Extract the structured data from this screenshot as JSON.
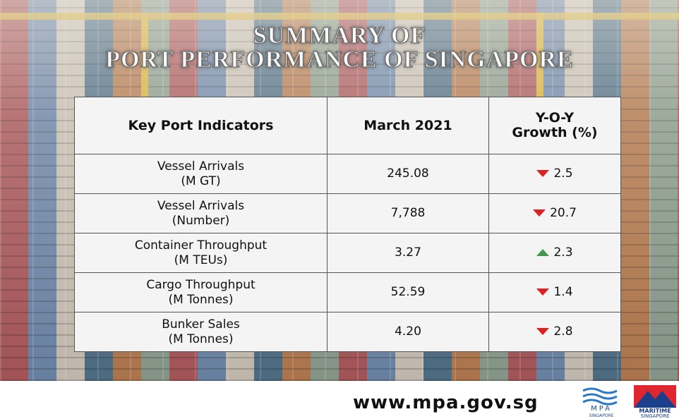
{
  "header": {
    "title_lines": [
      "SUMMARY OF",
      "PORT PERFORMANCE OF SINGAPORE"
    ]
  },
  "table": {
    "columns": [
      [
        "Key Port Indicators"
      ],
      [
        "March 2021"
      ],
      [
        "Y-O-Y",
        "Growth (%)"
      ]
    ],
    "rows": [
      [
        [
          "Vessel Arrivals",
          "(M GT)"
        ],
        "245.08",
        "2.5"
      ],
      [
        [
          "Vessel Arrivals",
          "(Number)"
        ],
        "7,788",
        "20.7"
      ],
      [
        [
          "Container Throughput",
          "(M TEUs)"
        ],
        "3.27",
        "2.3"
      ],
      [
        [
          "Cargo Throughput",
          "(M Tonnes)"
        ],
        "52.59",
        "1.4"
      ],
      [
        [
          "Bunker Sales",
          "(M Tonnes)"
        ],
        "4.20",
        "2.8"
      ]
    ]
  },
  "footer": {
    "url": "www.mpa.gov.sg",
    "mpa_logo": [
      "MPA",
      "SINGAPORE"
    ],
    "maritime_logo": [
      "MARITIME",
      "SINGAPORE"
    ]
  }
}
